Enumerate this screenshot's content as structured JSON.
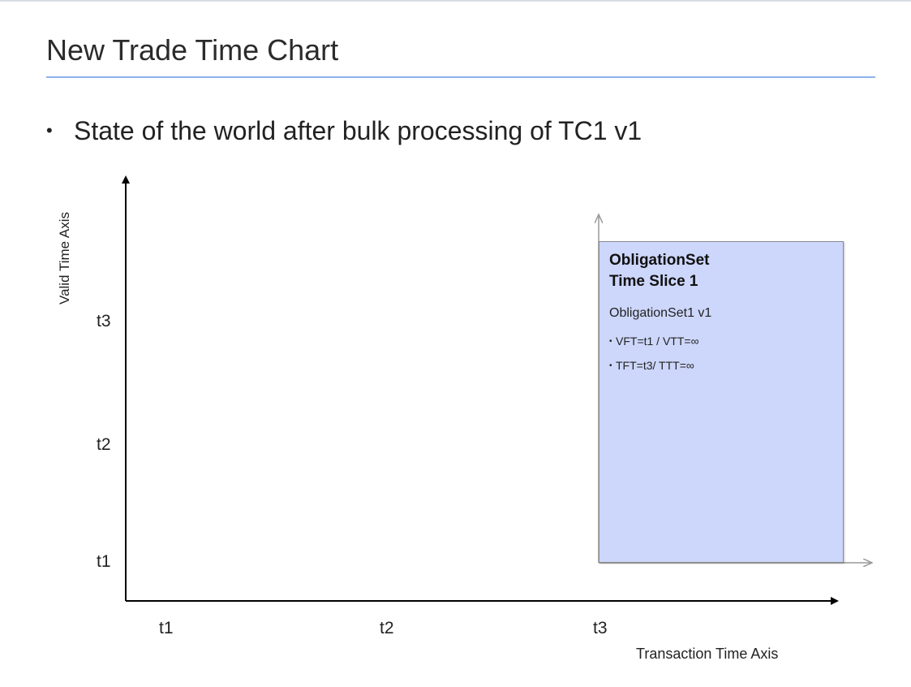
{
  "slide": {
    "title": "New Trade Time Chart",
    "bullet": "State of the world after bulk processing of TC1 v1"
  },
  "chart": {
    "y_axis_label": "Valid Time Axis",
    "x_axis_label": "Transaction Time Axis",
    "y_ticks": [
      "t3",
      "t2",
      "t1"
    ],
    "x_ticks": [
      "t1",
      "t2",
      "t3"
    ]
  },
  "time_slice": {
    "title_line1": "ObligationSet",
    "title_line2": "Time Slice 1",
    "subtitle": "ObligationSet1 v1",
    "properties": [
      "VFT=t1 / VTT=∞",
      "TFT=t3/ TTT=∞"
    ],
    "fill_color": "#cdd7fb"
  },
  "colors": {
    "title_rule": "#8fb1ea",
    "axis": "#000000",
    "local_axis": "#999999"
  }
}
